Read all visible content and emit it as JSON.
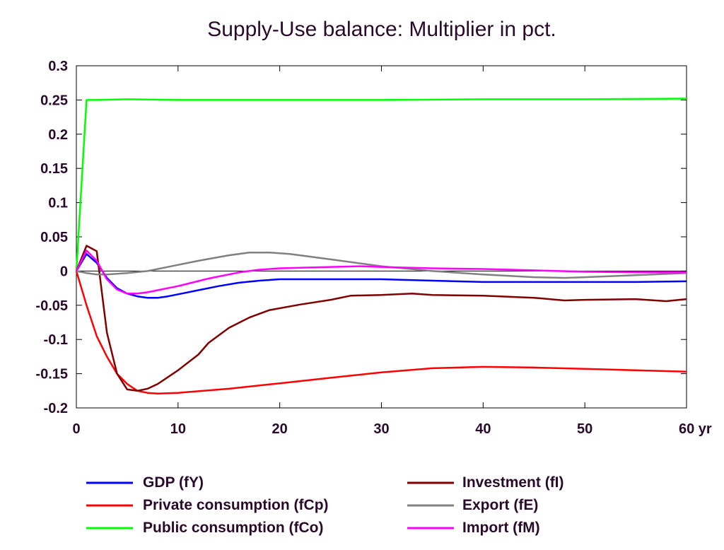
{
  "chart_data": {
    "type": "line",
    "title": "Supply-Use balance: Multiplier in pct.",
    "xlabel": "",
    "ylabel": "",
    "x_unit_label": "yr",
    "xlim": [
      0,
      60
    ],
    "ylim": [
      -0.2,
      0.3
    ],
    "x_ticks": [
      0,
      10,
      20,
      30,
      40,
      50,
      60
    ],
    "x_tick_labels": [
      "0",
      "10",
      "20",
      "30",
      "40",
      "50",
      "60 yr"
    ],
    "y_ticks": [
      0.3,
      0.25,
      0.2,
      0.15,
      0.1,
      0.05,
      0,
      -0.05,
      -0.1,
      -0.15,
      -0.2
    ],
    "y_tick_labels": [
      "0.3",
      "0.25",
      "0.2",
      "0.15",
      "0.1",
      "0.05",
      "0",
      "-0.05",
      "-0.1",
      "-0.15",
      "-0.2"
    ],
    "grid": false,
    "zero_line": true,
    "legend_position": "bottom",
    "series": [
      {
        "name": "GDP (fY)",
        "color": "#0000ff",
        "points": [
          [
            0,
            0
          ],
          [
            1,
            0.025
          ],
          [
            2,
            0.012
          ],
          [
            3,
            -0.01
          ],
          [
            4,
            -0.025
          ],
          [
            5,
            -0.033
          ],
          [
            6,
            -0.037
          ],
          [
            7,
            -0.039
          ],
          [
            8,
            -0.039
          ],
          [
            9,
            -0.037
          ],
          [
            10,
            -0.034
          ],
          [
            12,
            -0.028
          ],
          [
            14,
            -0.022
          ],
          [
            16,
            -0.017
          ],
          [
            18,
            -0.014
          ],
          [
            20,
            -0.012
          ],
          [
            25,
            -0.012
          ],
          [
            30,
            -0.012
          ],
          [
            35,
            -0.014
          ],
          [
            40,
            -0.016
          ],
          [
            45,
            -0.016
          ],
          [
            50,
            -0.016
          ],
          [
            55,
            -0.016
          ],
          [
            60,
            -0.015
          ]
        ]
      },
      {
        "name": "Private consumption (fCp)",
        "color": "#ff0000",
        "points": [
          [
            0,
            0
          ],
          [
            1,
            -0.05
          ],
          [
            2,
            -0.095
          ],
          [
            3,
            -0.125
          ],
          [
            4,
            -0.15
          ],
          [
            5,
            -0.165
          ],
          [
            6,
            -0.175
          ],
          [
            7,
            -0.178
          ],
          [
            8,
            -0.179
          ],
          [
            10,
            -0.178
          ],
          [
            15,
            -0.172
          ],
          [
            20,
            -0.164
          ],
          [
            25,
            -0.156
          ],
          [
            30,
            -0.148
          ],
          [
            35,
            -0.142
          ],
          [
            40,
            -0.14
          ],
          [
            45,
            -0.141
          ],
          [
            50,
            -0.143
          ],
          [
            55,
            -0.145
          ],
          [
            60,
            -0.147
          ]
        ]
      },
      {
        "name": "Public consumption (fCo)",
        "color": "#00ff00",
        "points": [
          [
            0,
            0
          ],
          [
            1,
            0.25
          ],
          [
            2,
            0.25
          ],
          [
            5,
            0.251
          ],
          [
            10,
            0.25
          ],
          [
            20,
            0.25
          ],
          [
            30,
            0.25
          ],
          [
            40,
            0.251
          ],
          [
            50,
            0.251
          ],
          [
            60,
            0.252
          ]
        ]
      },
      {
        "name": "Investment (fI)",
        "color": "#800000",
        "points": [
          [
            0,
            0
          ],
          [
            1,
            0.037
          ],
          [
            2,
            0.029
          ],
          [
            3,
            -0.09
          ],
          [
            4,
            -0.15
          ],
          [
            5,
            -0.173
          ],
          [
            6,
            -0.175
          ],
          [
            7,
            -0.172
          ],
          [
            8,
            -0.165
          ],
          [
            10,
            -0.145
          ],
          [
            12,
            -0.122
          ],
          [
            13,
            -0.105
          ],
          [
            15,
            -0.083
          ],
          [
            17,
            -0.068
          ],
          [
            19,
            -0.057
          ],
          [
            22,
            -0.049
          ],
          [
            25,
            -0.042
          ],
          [
            27,
            -0.036
          ],
          [
            30,
            -0.035
          ],
          [
            33,
            -0.033
          ],
          [
            35,
            -0.035
          ],
          [
            40,
            -0.036
          ],
          [
            45,
            -0.039
          ],
          [
            48,
            -0.043
          ],
          [
            50,
            -0.042
          ],
          [
            55,
            -0.041
          ],
          [
            58,
            -0.044
          ],
          [
            60,
            -0.041
          ]
        ]
      },
      {
        "name": "Export (fE)",
        "color": "#808080",
        "points": [
          [
            0,
            0
          ],
          [
            1,
            -0.003
          ],
          [
            2,
            -0.005
          ],
          [
            3,
            -0.005
          ],
          [
            5,
            -0.003
          ],
          [
            7,
            0
          ],
          [
            10,
            0.009
          ],
          [
            12,
            0.015
          ],
          [
            15,
            0.023
          ],
          [
            17,
            0.027
          ],
          [
            19,
            0.027
          ],
          [
            21,
            0.025
          ],
          [
            25,
            0.017
          ],
          [
            30,
            0.007
          ],
          [
            35,
            0
          ],
          [
            40,
            -0.005
          ],
          [
            45,
            -0.009
          ],
          [
            48,
            -0.01
          ],
          [
            50,
            -0.009
          ],
          [
            55,
            -0.006
          ],
          [
            60,
            -0.003
          ]
        ]
      },
      {
        "name": "Import (fM)",
        "color": "#ff00ff",
        "points": [
          [
            0,
            0
          ],
          [
            1,
            0.03
          ],
          [
            2,
            0.015
          ],
          [
            3,
            -0.012
          ],
          [
            4,
            -0.027
          ],
          [
            5,
            -0.033
          ],
          [
            6,
            -0.033
          ],
          [
            7,
            -0.031
          ],
          [
            10,
            -0.022
          ],
          [
            13,
            -0.011
          ],
          [
            16,
            -0.002
          ],
          [
            18,
            0.002
          ],
          [
            20,
            0.004
          ],
          [
            25,
            0.006
          ],
          [
            28,
            0.007
          ],
          [
            30,
            0.006
          ],
          [
            35,
            0.004
          ],
          [
            40,
            0.003
          ],
          [
            45,
            0.001
          ],
          [
            50,
            -0.001
          ],
          [
            55,
            -0.002
          ],
          [
            60,
            -0.002
          ]
        ]
      }
    ]
  }
}
